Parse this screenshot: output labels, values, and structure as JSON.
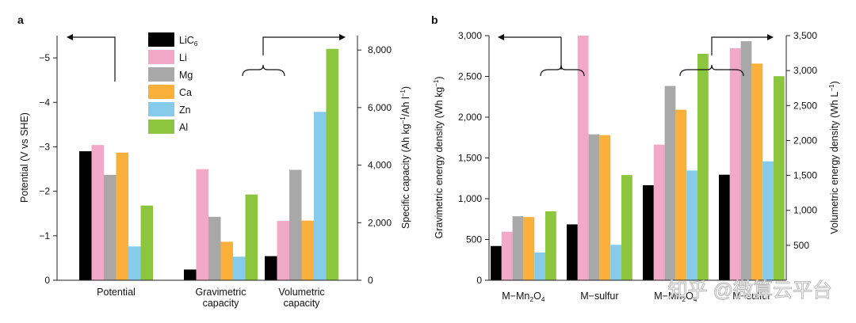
{
  "colors": {
    "LiC6": "#000000",
    "Li": "#f2a9c8",
    "Mg": "#a8a8a8",
    "Ca": "#fbb03b",
    "Zn": "#86ccea",
    "Al": "#8cc63f"
  },
  "watermark": "知乎 @微算云平台",
  "chart_data": [
    {
      "type": "bar",
      "panel_label": "a",
      "legend_placement": "top-center",
      "legend": [
        {
          "key": "LiC6",
          "label": "LiC",
          "sub": "6"
        },
        {
          "key": "Li",
          "label": "Li"
        },
        {
          "key": "Mg",
          "label": "Mg"
        },
        {
          "key": "Ca",
          "label": "Ca"
        },
        {
          "key": "Zn",
          "label": "Zn"
        },
        {
          "key": "Al",
          "label": "Al"
        }
      ],
      "categories": [
        {
          "lines": [
            "Potential"
          ]
        },
        {
          "lines": [
            "Gravimetric",
            "capacity"
          ]
        },
        {
          "lines": [
            "Volumetric",
            "capacity"
          ]
        }
      ],
      "left_axis": {
        "label": "Potential (V vs SHE)",
        "range": [
          0,
          -5.5
        ],
        "ticks": [
          0,
          -1,
          -2,
          -3,
          -4,
          -5
        ],
        "tick_labels": [
          "0",
          "−1",
          "−2",
          "−3",
          "−4",
          "−5"
        ]
      },
      "right_axis": {
        "label_main": "Specific capacity (Ah kg",
        "label_sup1": "−1",
        "label_mid": "/Ah l",
        "label_sup2": "−1",
        "label_end": ")",
        "range": [
          0,
          8500
        ],
        "ticks": [
          0,
          2000,
          4000,
          6000,
          8000
        ],
        "tick_labels": [
          "0",
          "2,000",
          "4,000",
          "6,000",
          "8,000"
        ]
      },
      "series": [
        {
          "name": "LiC6",
          "values": [
            -2.9,
            372,
            837
          ],
          "axes": [
            "left",
            "right",
            "right"
          ]
        },
        {
          "name": "Li",
          "values": [
            -3.04,
            3860,
            2062
          ],
          "axes": [
            "left",
            "right",
            "right"
          ]
        },
        {
          "name": "Mg",
          "values": [
            -2.37,
            2205,
            3837
          ],
          "axes": [
            "left",
            "right",
            "right"
          ]
        },
        {
          "name": "Ca",
          "values": [
            -2.87,
            1337,
            2073
          ],
          "axes": [
            "left",
            "right",
            "right"
          ]
        },
        {
          "name": "Zn",
          "values": [
            -0.76,
            820,
            5851
          ],
          "axes": [
            "left",
            "right",
            "right"
          ]
        },
        {
          "name": "Al",
          "values": [
            -1.68,
            2980,
            8040
          ],
          "axes": [
            "left",
            "right",
            "right"
          ]
        }
      ]
    },
    {
      "type": "bar",
      "panel_label": "b",
      "categories": [
        {
          "lines": [
            "M−Mn2O4"
          ]
        },
        {
          "lines": [
            "M−sulfur"
          ]
        },
        {
          "lines": [
            "M−Mn2O4"
          ]
        },
        {
          "lines": [
            "M−sulfur"
          ]
        }
      ],
      "left_axis": {
        "label_main": "Gravimetric energy density (Wh kg",
        "label_sup": "−1",
        "label_end": ")",
        "range": [
          0,
          3000
        ],
        "ticks": [
          0,
          500,
          1000,
          1500,
          2000,
          2500,
          3000
        ],
        "tick_labels": [
          "0",
          "500",
          "1,000",
          "1,500",
          "2,000",
          "2,500",
          "3,000"
        ]
      },
      "right_axis": {
        "label_main": "Volumetric energy density (Wh L",
        "label_sup": "−1",
        "label_end": ")",
        "range": [
          0,
          3500
        ],
        "ticks": [
          500,
          1000,
          1500,
          2000,
          2500,
          3000,
          3500
        ],
        "tick_labels": [
          "500",
          "1,000",
          "1,500",
          "2,000",
          "2,500",
          "3,000",
          "3,500"
        ]
      },
      "series": [
        {
          "name": "LiC6",
          "values": [
            420,
            685,
            1360,
            1510
          ],
          "axes": [
            "left",
            "left",
            "right",
            "right"
          ]
        },
        {
          "name": "Li",
          "values": [
            595,
            3000,
            1940,
            3320
          ],
          "axes": [
            "left",
            "left",
            "right",
            "right"
          ]
        },
        {
          "name": "Mg",
          "values": [
            785,
            1790,
            2780,
            3420
          ],
          "axes": [
            "left",
            "left",
            "right",
            "right"
          ]
        },
        {
          "name": "Ca",
          "values": [
            775,
            1780,
            2440,
            3100
          ],
          "axes": [
            "left",
            "left",
            "right",
            "right"
          ]
        },
        {
          "name": "Zn",
          "values": [
            340,
            435,
            1570,
            1700
          ],
          "axes": [
            "left",
            "left",
            "right",
            "right"
          ]
        },
        {
          "name": "Al",
          "values": [
            845,
            1290,
            3240,
            2920
          ],
          "axes": [
            "left",
            "left",
            "right",
            "right"
          ]
        }
      ]
    }
  ]
}
